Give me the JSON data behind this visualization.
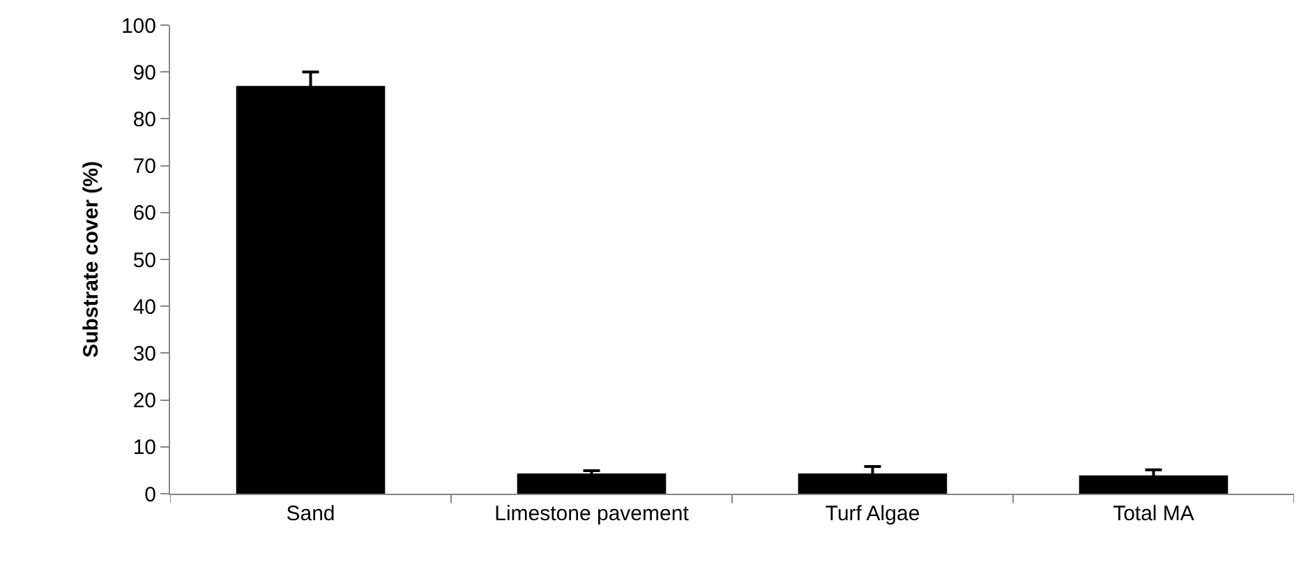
{
  "chart_data": {
    "type": "bar",
    "ylabel": "Substrate cover (%)",
    "categories": [
      "Sand",
      "Limestone pavement",
      "Turf Algae",
      "Total MA"
    ],
    "values": [
      87,
      4.3,
      4.3,
      3.9
    ],
    "errors": [
      3,
      0.6,
      1.5,
      1.2
    ],
    "color": "#000000",
    "ylim": [
      0,
      100
    ],
    "yticks": [
      0,
      10,
      20,
      30,
      40,
      50,
      60,
      70,
      80,
      90,
      100
    ],
    "grid": false
  }
}
